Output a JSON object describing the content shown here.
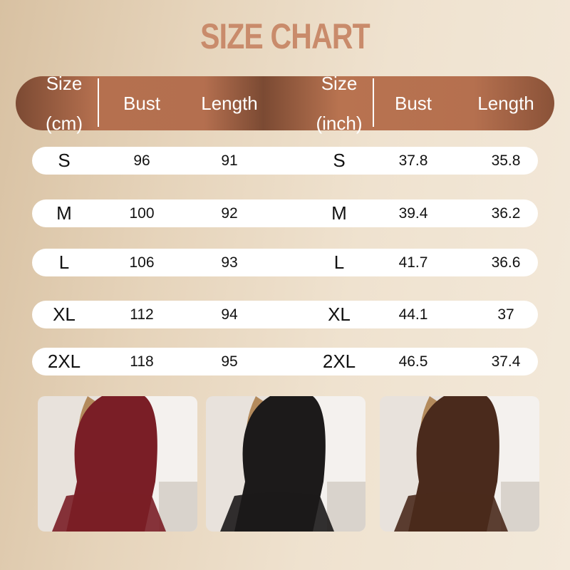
{
  "title": "SIZE CHART",
  "colors": {
    "header": "#b5704f",
    "title": "#c98b6b",
    "background": "#e6d4bb"
  },
  "headers": [
    {
      "line1": "Size",
      "line2": "(cm)"
    },
    {
      "line1": "Bust",
      "line2": ""
    },
    {
      "line1": "Length",
      "line2": ""
    },
    {
      "line1": "Size",
      "line2": "(inch)"
    },
    {
      "line1": "Bust",
      "line2": ""
    },
    {
      "line1": "Length",
      "line2": ""
    }
  ],
  "rows": [
    [
      "S",
      "96",
      "91",
      "S",
      "37.8",
      "35.8"
    ],
    [
      "M",
      "100",
      "92",
      "M",
      "39.4",
      "36.2"
    ],
    [
      "L",
      "106",
      "93",
      "L",
      "41.7",
      "36.6"
    ],
    [
      "XL",
      "112",
      "94",
      "XL",
      "44.1",
      "37"
    ],
    [
      "2XL",
      "118",
      "95",
      "2XL",
      "46.5",
      "37.4"
    ]
  ],
  "photos": [
    {
      "garment_color": "#7a1e26"
    },
    {
      "garment_color": "#1c1a1a"
    },
    {
      "garment_color": "#4a2a1c"
    }
  ]
}
